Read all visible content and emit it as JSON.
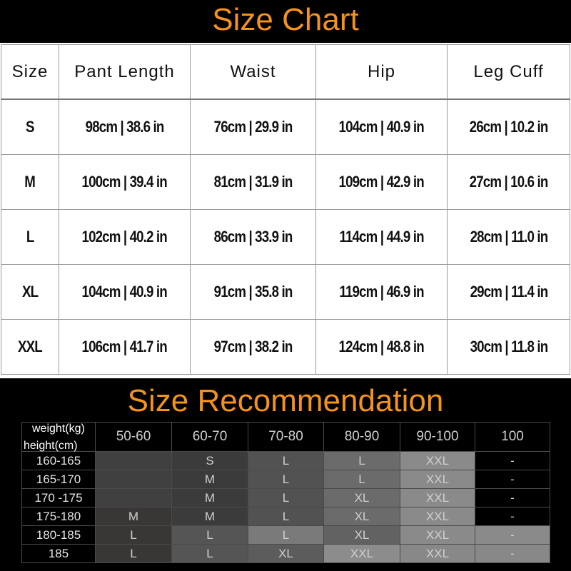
{
  "size_chart": {
    "title": "Size Chart",
    "headers": [
      "Size",
      "Pant Length",
      "Waist",
      "Hip",
      "Leg Cuff"
    ],
    "rows": [
      [
        "S",
        "98cm | 38.6 in",
        "76cm | 29.9 in",
        "104cm | 40.9 in",
        "26cm | 10.2 in"
      ],
      [
        "M",
        "100cm | 39.4 in",
        "81cm | 31.9 in",
        "109cm | 42.9 in",
        "27cm | 10.6 in"
      ],
      [
        "L",
        "102cm | 40.2 in",
        "86cm | 33.9 in",
        "114cm | 44.9 in",
        "28cm | 11.0 in"
      ],
      [
        "XL",
        "104cm | 40.9 in",
        "91cm | 35.8 in",
        "119cm | 46.9 in",
        "29cm | 11.4 in"
      ],
      [
        "XXL",
        "106cm | 41.7 in",
        "97cm | 38.2 in",
        "124cm | 48.8 in",
        "30cm | 11.8 in"
      ]
    ]
  },
  "recommendation": {
    "title": "Size Recommendation",
    "corner_weight": "weight(kg)",
    "corner_height": "height(cm)",
    "weights": [
      "50-60",
      "60-70",
      "70-80",
      "80-90",
      "90-100",
      "100"
    ],
    "rows": [
      {
        "height": "160-165",
        "sizes": [
          "",
          "S",
          "L",
          "L",
          "XXL",
          "-"
        ],
        "shades": [
          "#404040",
          "#3b3b3b",
          "#525252",
          "#6b6b6b",
          "#8a8a8a",
          "#000000"
        ]
      },
      {
        "height": "165-170",
        "sizes": [
          "",
          "M",
          "L",
          "L",
          "XXL",
          "-"
        ],
        "shades": [
          "#404040",
          "#3b3b3b",
          "#525252",
          "#6b6b6b",
          "#8a8a8a",
          "#000000"
        ]
      },
      {
        "height": "170 -175",
        "sizes": [
          "",
          "M",
          "L",
          "XL",
          "XXL",
          "-"
        ],
        "shades": [
          "#404040",
          "#3b3b3b",
          "#525252",
          "#6b6b6b",
          "#8a8a8a",
          "#000000"
        ]
      },
      {
        "height": "175-180",
        "sizes": [
          "M",
          "M",
          "L",
          "XL",
          "XXL",
          "-"
        ],
        "shades": [
          "#393636",
          "#3b3b3b",
          "#525252",
          "#6b6b6b",
          "#8a8a8a",
          "#000000"
        ]
      },
      {
        "height": "180-185",
        "sizes": [
          "L",
          "L",
          "L",
          "XL",
          "XXL",
          "-"
        ],
        "shades": [
          "#393636",
          "#555555",
          "#7a7a7a",
          "#626262",
          "#8a8a8a",
          "#8a8a8a"
        ]
      },
      {
        "height": "185",
        "sizes": [
          "L",
          "L",
          "XL",
          "XXL",
          "XXL",
          "-"
        ],
        "shades": [
          "#393636",
          "#555555",
          "#5c5c5c",
          "#8c8c8c",
          "#888888",
          "#888888"
        ]
      }
    ]
  }
}
